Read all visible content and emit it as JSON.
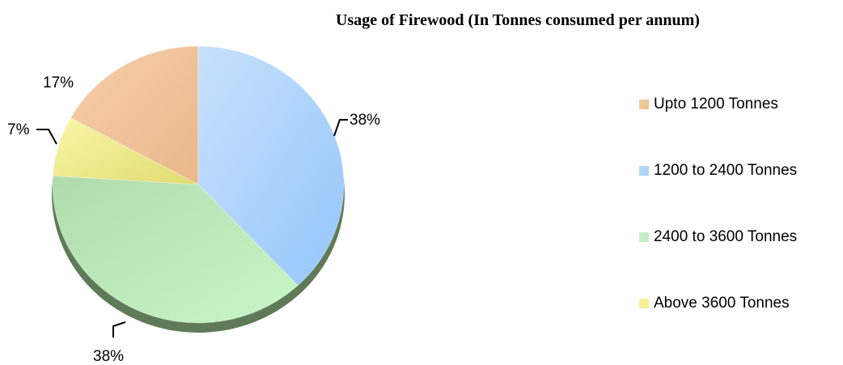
{
  "chart_data": {
    "type": "pie",
    "title": "Usage of Firewood (In Tonnes consumed per annum)",
    "categories": [
      "Upto 1200 Tonnes",
      "1200 to 2400 Tonnes",
      "2400 to 3600 Tonnes",
      "Above 3600 Tonnes"
    ],
    "values": [
      17,
      38,
      38,
      7
    ],
    "data_labels": [
      "17%",
      "38%",
      "38%",
      "7%"
    ],
    "colors": [
      "#f2c08e",
      "#a9d0fb",
      "#bdeebc",
      "#f4ef8a"
    ],
    "legend_position": "right",
    "style": "3d"
  }
}
